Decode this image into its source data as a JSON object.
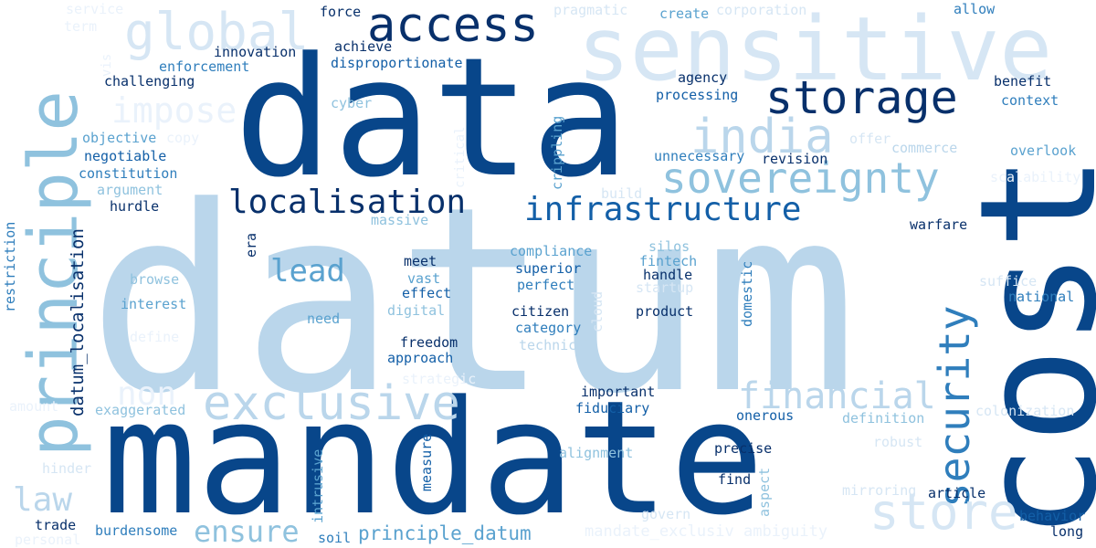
{
  "palette": {
    "c0": "#eaf2fb",
    "c1": "#d6e6f4",
    "c2": "#bad6eb",
    "c3": "#8fc2de",
    "c4": "#5aa2cf",
    "c5": "#2f7ebc",
    "c6": "#135fa7",
    "c7": "#08306b",
    "c8": "#08468a"
  },
  "words": [
    {
      "id": "datum",
      "text": "datum",
      "color": "c2"
    },
    {
      "id": "data",
      "text": "data",
      "color": "c8"
    },
    {
      "id": "mandate",
      "text": "mandate",
      "color": "c8"
    },
    {
      "id": "cost",
      "text": "cost",
      "color": "c8"
    },
    {
      "id": "sensitive",
      "text": "sensitive",
      "color": "c1"
    },
    {
      "id": "principle",
      "text": "principle",
      "color": "c3"
    },
    {
      "id": "access",
      "text": "access",
      "color": "c7"
    },
    {
      "id": "storage",
      "text": "storage",
      "color": "c7"
    },
    {
      "id": "global",
      "text": "global",
      "color": "c1"
    },
    {
      "id": "sovereignty",
      "text": "sovereignty",
      "color": "c3"
    },
    {
      "id": "india",
      "text": "india",
      "color": "c2"
    },
    {
      "id": "localisation",
      "text": "localisation",
      "color": "c7"
    },
    {
      "id": "infrastructure",
      "text": "infrastructure",
      "color": "c6"
    },
    {
      "id": "exclusive",
      "text": "exclusive",
      "color": "c2"
    },
    {
      "id": "security",
      "text": "security",
      "color": "c5"
    },
    {
      "id": "store",
      "text": "store",
      "color": "c1"
    },
    {
      "id": "financial",
      "text": "financial",
      "color": "c2"
    },
    {
      "id": "impose",
      "text": "impose",
      "color": "c0"
    },
    {
      "id": "lead",
      "text": "lead",
      "color": "c4"
    },
    {
      "id": "non",
      "text": "non",
      "color": "c0"
    },
    {
      "id": "law",
      "text": "law",
      "color": "c2"
    },
    {
      "id": "ensure",
      "text": "ensure",
      "color": "c3"
    },
    {
      "id": "datum_localisation",
      "text": "datum_localisation",
      "color": "c7"
    },
    {
      "id": "principle_datum",
      "text": "principle_datum",
      "color": "c4"
    },
    {
      "id": "mandate_exclusiv_ambiguity",
      "text": "mandate_exclusiv ambiguity",
      "color": "c0"
    },
    {
      "id": "service",
      "text": "service",
      "color": "c0"
    },
    {
      "id": "term",
      "text": "term",
      "color": "c0"
    },
    {
      "id": "vis",
      "text": "vis",
      "color": "c0"
    },
    {
      "id": "enforcement",
      "text": "enforcement",
      "color": "c5"
    },
    {
      "id": "innovation",
      "text": "innovation",
      "color": "c7"
    },
    {
      "id": "force",
      "text": "force",
      "color": "c7"
    },
    {
      "id": "achieve",
      "text": "achieve",
      "color": "c7"
    },
    {
      "id": "disproportionate",
      "text": "disproportionate",
      "color": "c6"
    },
    {
      "id": "challenging",
      "text": "challenging",
      "color": "c7"
    },
    {
      "id": "pragmatic",
      "text": "pragmatic",
      "color": "c1"
    },
    {
      "id": "create",
      "text": "create",
      "color": "c4"
    },
    {
      "id": "corporation",
      "text": "corporation",
      "color": "c1"
    },
    {
      "id": "allow",
      "text": "allow",
      "color": "c5"
    },
    {
      "id": "agency",
      "text": "agency",
      "color": "c7"
    },
    {
      "id": "processing",
      "text": "processing",
      "color": "c6"
    },
    {
      "id": "benefit",
      "text": "benefit",
      "color": "c7"
    },
    {
      "id": "context",
      "text": "context",
      "color": "c5"
    },
    {
      "id": "cyber",
      "text": "cyber",
      "color": "c3"
    },
    {
      "id": "objective",
      "text": "objective",
      "color": "c4"
    },
    {
      "id": "copy",
      "text": "copy",
      "color": "c0"
    },
    {
      "id": "negotiable",
      "text": "negotiable",
      "color": "c6"
    },
    {
      "id": "constitution",
      "text": "constitution",
      "color": "c5"
    },
    {
      "id": "argument",
      "text": "argument",
      "color": "c3"
    },
    {
      "id": "hurdle",
      "text": "hurdle",
      "color": "c7"
    },
    {
      "id": "critical",
      "text": "critical",
      "color": "c0"
    },
    {
      "id": "crippling",
      "text": "crippling",
      "color": "c4"
    },
    {
      "id": "unnecessary",
      "text": "unnecessary",
      "color": "c5"
    },
    {
      "id": "revision",
      "text": "revision",
      "color": "c7"
    },
    {
      "id": "offer",
      "text": "offer",
      "color": "c1"
    },
    {
      "id": "commerce",
      "text": "commerce",
      "color": "c2"
    },
    {
      "id": "overlook",
      "text": "overlook",
      "color": "c4"
    },
    {
      "id": "scalability",
      "text": "scalability",
      "color": "c0"
    },
    {
      "id": "build",
      "text": "build",
      "color": "c1"
    },
    {
      "id": "massive",
      "text": "massive",
      "color": "c3"
    },
    {
      "id": "restriction",
      "text": "restriction",
      "color": "c5"
    },
    {
      "id": "era",
      "text": "era",
      "color": "c7"
    },
    {
      "id": "warfare",
      "text": "warfare",
      "color": "c7"
    },
    {
      "id": "compliance",
      "text": "compliance",
      "color": "c4"
    },
    {
      "id": "silos",
      "text": "silos",
      "color": "c3"
    },
    {
      "id": "fintech",
      "text": "fintech",
      "color": "c4"
    },
    {
      "id": "meet",
      "text": "meet",
      "color": "c7"
    },
    {
      "id": "superior",
      "text": "superior",
      "color": "c6"
    },
    {
      "id": "handle",
      "text": "handle",
      "color": "c7"
    },
    {
      "id": "domestic",
      "text": "domestic",
      "color": "c5"
    },
    {
      "id": "browse",
      "text": "browse",
      "color": "c3"
    },
    {
      "id": "vast",
      "text": "vast",
      "color": "c4"
    },
    {
      "id": "perfect",
      "text": "perfect",
      "color": "c5"
    },
    {
      "id": "startup",
      "text": "startup",
      "color": "c1"
    },
    {
      "id": "suffice",
      "text": "suffice",
      "color": "c1"
    },
    {
      "id": "interest",
      "text": "interest",
      "color": "c4"
    },
    {
      "id": "effect",
      "text": "effect",
      "color": "c6"
    },
    {
      "id": "cloud",
      "text": "cloud",
      "color": "c1"
    },
    {
      "id": "national",
      "text": "national",
      "color": "c5"
    },
    {
      "id": "digital",
      "text": "digital",
      "color": "c3"
    },
    {
      "id": "citizen",
      "text": "citizen",
      "color": "c7"
    },
    {
      "id": "product",
      "text": "product",
      "color": "c7"
    },
    {
      "id": "need",
      "text": "need",
      "color": "c4"
    },
    {
      "id": "category",
      "text": "category",
      "color": "c5"
    },
    {
      "id": "define",
      "text": "define",
      "color": "c0"
    },
    {
      "id": "freedom",
      "text": "freedom",
      "color": "c7"
    },
    {
      "id": "technical",
      "text": "technical",
      "color": "c2"
    },
    {
      "id": "approach",
      "text": "approach",
      "color": "c6"
    },
    {
      "id": "strategic",
      "text": "strategic",
      "color": "c0"
    },
    {
      "id": "important",
      "text": "important",
      "color": "c7"
    },
    {
      "id": "amount",
      "text": "amount",
      "color": "c0"
    },
    {
      "id": "exaggerated",
      "text": "exaggerated",
      "color": "c3"
    },
    {
      "id": "fiduciary",
      "text": "fiduciary",
      "color": "c6"
    },
    {
      "id": "colonization",
      "text": "colonization",
      "color": "c1"
    },
    {
      "id": "onerous",
      "text": "onerous",
      "color": "c6"
    },
    {
      "id": "definition",
      "text": "definition",
      "color": "c3"
    },
    {
      "id": "robust",
      "text": "robust",
      "color": "c1"
    },
    {
      "id": "intrusive",
      "text": "intrusive",
      "color": "c4"
    },
    {
      "id": "measure",
      "text": "measure",
      "color": "c6"
    },
    {
      "id": "alignment",
      "text": "alignment",
      "color": "c3"
    },
    {
      "id": "precise",
      "text": "precise",
      "color": "c7"
    },
    {
      "id": "hinder",
      "text": "hinder",
      "color": "c1"
    },
    {
      "id": "find",
      "text": "find",
      "color": "c7"
    },
    {
      "id": "aspect",
      "text": "aspect",
      "color": "c3"
    },
    {
      "id": "mirroring",
      "text": "mirroring",
      "color": "c1"
    },
    {
      "id": "article",
      "text": "article",
      "color": "c7"
    },
    {
      "id": "trade",
      "text": "trade",
      "color": "c7"
    },
    {
      "id": "burdensome",
      "text": "burdensome",
      "color": "c5"
    },
    {
      "id": "soil",
      "text": "soil",
      "color": "c5"
    },
    {
      "id": "govern",
      "text": "govern",
      "color": "c1"
    },
    {
      "id": "behavior",
      "text": "behavior",
      "color": "c6"
    },
    {
      "id": "long",
      "text": "long",
      "color": "c7"
    },
    {
      "id": "personal",
      "text": "personal",
      "color": "c0"
    }
  ]
}
